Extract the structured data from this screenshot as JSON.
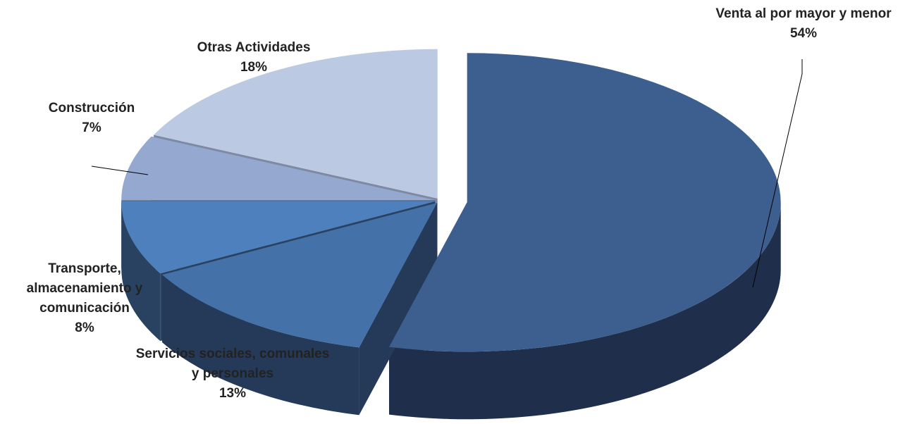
{
  "chart_data": {
    "type": "pie",
    "style": "3d-exploded",
    "legend": "none",
    "slices": [
      {
        "label": "Venta al por mayor y menor",
        "percent_label": "54%",
        "value": 54,
        "color": "#3d5f8f",
        "side_color": "#1f2f4b"
      },
      {
        "label": "Servicios sociales, comunales y personales",
        "percent_label": "13%",
        "value": 13,
        "color": "#4371a8",
        "side_color": "#253a58"
      },
      {
        "label": "Transporte, almacenamiento y comunicación",
        "percent_label": "8%",
        "value": 8,
        "color": "#4d80bd",
        "side_color": "#2a4262"
      },
      {
        "label": "Construcción",
        "percent_label": "7%",
        "value": 7,
        "color": "#94a8d0",
        "side_color": "#5e6e8e"
      },
      {
        "label": "Otras Actividades",
        "percent_label": "18%",
        "value": 18,
        "color": "#bcc9e2",
        "side_color": "#7d8aa4"
      }
    ]
  }
}
